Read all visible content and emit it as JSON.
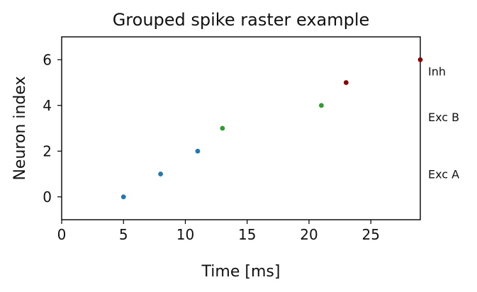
{
  "chart_data": {
    "type": "scatter",
    "title": "Grouped spike raster example",
    "xlabel": "Time [ms]",
    "ylabel": "Neuron index",
    "xlim": [
      0,
      29
    ],
    "ylim": [
      -1,
      7
    ],
    "xticks": [
      0,
      5,
      10,
      15,
      20,
      25
    ],
    "yticks": [
      0,
      2,
      4,
      6
    ],
    "grid": false,
    "series": [
      {
        "color": "#1f77b4",
        "points": [
          [
            5,
            0
          ],
          [
            8,
            1
          ],
          [
            11,
            2
          ]
        ]
      },
      {
        "color": "#2ca02c",
        "points": [
          [
            13,
            3
          ],
          [
            21,
            4
          ]
        ]
      },
      {
        "color": "#8b0000",
        "points": [
          [
            23,
            5
          ],
          [
            29,
            6
          ]
        ]
      }
    ],
    "group_labels": [
      {
        "text": "Exc A",
        "y": 1
      },
      {
        "text": "Exc B",
        "y": 3.5
      },
      {
        "text": "Inh",
        "y": 5.5
      }
    ]
  }
}
